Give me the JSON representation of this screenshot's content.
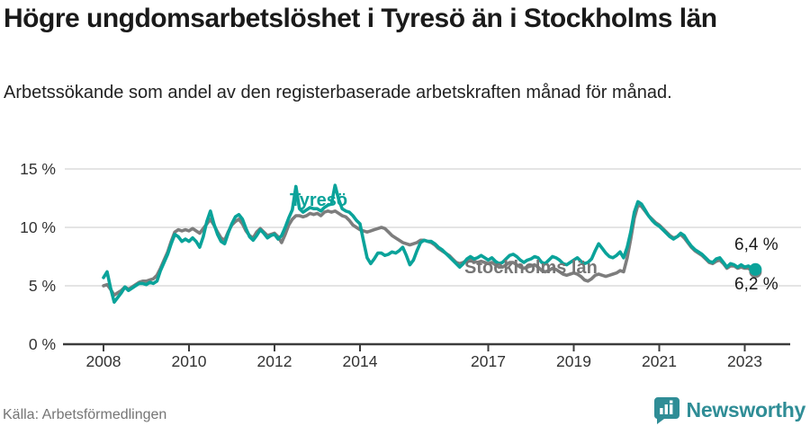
{
  "header": {
    "title": "Högre ungdomsarbetslöshet i Tyresö än i Stockholms län",
    "subtitle": "Arbetssökande som andel av den registerbaserade arbetskraften månad för månad."
  },
  "footer": {
    "source": "Källa: Arbetsförmedlingen",
    "brand": "Newsworthy"
  },
  "colors": {
    "tyreso_line": "#0AA39A",
    "stockholm_line": "#7D7D7D",
    "gridline": "#DCDCDC",
    "axis": "#3C3C3C",
    "axis_text": "#333333",
    "brand_teal": "#2F8D96"
  },
  "chart_data": {
    "type": "line",
    "title": "Högre ungdomsarbetslöshet i Tyresö än i Stockholms län",
    "subtitle": "Arbetssökande som andel av den registerbaserade arbetskraften månad för månad.",
    "frequency": "monthly",
    "x_start_year": 2008,
    "ylim": [
      0,
      15.5
    ],
    "grid": "horizontal",
    "legend": "inline-labels",
    "y_ticks": [
      {
        "value": 0,
        "label": "0 %"
      },
      {
        "value": 5,
        "label": "5 %"
      },
      {
        "value": 10,
        "label": "10 %"
      },
      {
        "value": 15,
        "label": "15 %"
      }
    ],
    "x_ticks": [
      {
        "year": 2008,
        "label": "2008"
      },
      {
        "year": 2010,
        "label": "2010"
      },
      {
        "year": 2012,
        "label": "2012"
      },
      {
        "year": 2014,
        "label": "2014"
      },
      {
        "year": 2017,
        "label": "2017"
      },
      {
        "year": 2019,
        "label": "2019"
      },
      {
        "year": 2021,
        "label": "2021"
      },
      {
        "year": 2023,
        "label": "2023"
      }
    ],
    "labels": {
      "tyreso": "Tyresö",
      "stockholm": "Stockholms län"
    },
    "end_labels": {
      "tyreso": "6,4 %",
      "stockholm": "6,2 %"
    },
    "series": [
      {
        "name": "Tyresö",
        "color": "#0AA39A",
        "end_value": 6.4,
        "values": [
          5.7,
          6.2,
          4.8,
          3.6,
          4.0,
          4.4,
          4.9,
          4.6,
          4.8,
          5.0,
          5.2,
          5.2,
          5.1,
          5.3,
          5.2,
          5.4,
          6.3,
          7.0,
          7.7,
          8.6,
          9.4,
          9.2,
          8.8,
          9.0,
          8.8,
          9.1,
          8.8,
          8.3,
          9.2,
          10.5,
          11.4,
          10.3,
          9.4,
          8.8,
          8.6,
          9.5,
          10.3,
          10.9,
          11.1,
          10.7,
          9.9,
          9.2,
          8.9,
          9.3,
          9.8,
          9.5,
          9.1,
          9.3,
          9.4,
          9.0,
          9.3,
          10.0,
          10.8,
          11.5,
          13.5,
          11.6,
          11.3,
          11.5,
          11.7,
          11.6,
          11.6,
          11.4,
          11.7,
          11.9,
          12.0,
          13.6,
          12.4,
          11.6,
          11.4,
          11.3,
          11.0,
          10.6,
          10.3,
          8.8,
          7.4,
          6.9,
          7.3,
          7.8,
          7.8,
          7.6,
          7.7,
          7.9,
          7.8,
          8.0,
          8.3,
          7.6,
          6.8,
          7.2,
          8.0,
          8.7,
          8.9,
          8.8,
          8.8,
          8.6,
          8.3,
          8.1,
          7.8,
          7.5,
          7.2,
          6.9,
          6.6,
          6.9,
          7.3,
          7.5,
          7.3,
          7.4,
          7.6,
          7.4,
          7.2,
          7.4,
          7.1,
          6.9,
          7.0,
          7.3,
          7.6,
          7.7,
          7.5,
          7.2,
          7.0,
          7.2,
          7.3,
          7.5,
          7.4,
          7.0,
          6.9,
          7.2,
          7.5,
          7.4,
          7.2,
          6.9,
          6.8,
          7.0,
          7.2,
          7.4,
          7.1,
          6.9,
          7.0,
          7.3,
          8.0,
          8.6,
          8.2,
          7.8,
          7.5,
          7.4,
          7.6,
          7.9,
          7.4,
          8.3,
          9.6,
          11.3,
          12.2,
          12.0,
          11.5,
          11.0,
          10.6,
          10.3,
          10.1,
          9.8,
          9.5,
          9.2,
          9.0,
          9.2,
          9.5,
          9.3,
          8.8,
          8.4,
          8.1,
          7.9,
          7.7,
          7.4,
          7.1,
          7.0,
          7.3,
          7.4,
          7.0,
          6.6,
          6.9,
          6.8,
          6.6,
          6.8,
          6.6,
          6.7,
          6.5,
          6.4
        ]
      },
      {
        "name": "Stockholms län",
        "color": "#7D7D7D",
        "end_value": 6.2,
        "values": [
          5.0,
          5.1,
          4.7,
          4.2,
          4.4,
          4.6,
          4.9,
          4.7,
          4.9,
          5.1,
          5.3,
          5.4,
          5.4,
          5.5,
          5.6,
          5.9,
          6.5,
          7.2,
          7.9,
          8.8,
          9.6,
          9.8,
          9.7,
          9.8,
          9.7,
          9.9,
          9.7,
          9.5,
          9.9,
          10.3,
          10.7,
          10.2,
          9.6,
          9.1,
          8.9,
          9.6,
          10.2,
          10.5,
          10.7,
          10.3,
          9.7,
          9.3,
          9.1,
          9.6,
          9.9,
          9.6,
          9.3,
          9.4,
          9.5,
          9.2,
          8.7,
          9.4,
          10.2,
          10.7,
          11.0,
          11.0,
          10.9,
          11.0,
          11.2,
          11.1,
          11.2,
          11.0,
          11.3,
          11.4,
          11.3,
          11.4,
          11.2,
          11.0,
          10.9,
          10.6,
          10.2,
          10.0,
          9.8,
          9.7,
          9.6,
          9.7,
          9.8,
          9.9,
          10.0,
          9.9,
          9.6,
          9.3,
          9.1,
          8.9,
          8.7,
          8.6,
          8.5,
          8.6,
          8.7,
          8.9,
          8.9,
          8.8,
          8.7,
          8.5,
          8.2,
          8.0,
          7.8,
          7.6,
          7.3,
          7.0,
          6.9,
          7.0,
          7.2,
          7.3,
          7.1,
          7.0,
          7.1,
          7.0,
          6.9,
          7.0,
          6.8,
          6.6,
          6.6,
          6.8,
          7.0,
          7.0,
          6.8,
          6.6,
          6.5,
          6.6,
          6.7,
          6.8,
          6.6,
          6.3,
          6.2,
          6.3,
          6.5,
          6.4,
          6.2,
          6.0,
          5.9,
          6.0,
          6.1,
          6.0,
          5.8,
          5.5,
          5.4,
          5.6,
          5.9,
          6.0,
          5.9,
          5.8,
          5.9,
          6.0,
          6.1,
          6.3,
          6.2,
          7.4,
          9.0,
          10.8,
          11.9,
          11.8,
          11.4,
          11.0,
          10.7,
          10.4,
          10.2,
          9.9,
          9.6,
          9.3,
          9.1,
          9.2,
          9.4,
          9.1,
          8.7,
          8.3,
          8.0,
          7.8,
          7.6,
          7.3,
          7.0,
          6.9,
          7.1,
          7.2,
          6.9,
          6.5,
          6.7,
          6.7,
          6.5,
          6.6,
          6.5,
          6.5,
          6.3,
          6.2
        ]
      }
    ]
  }
}
